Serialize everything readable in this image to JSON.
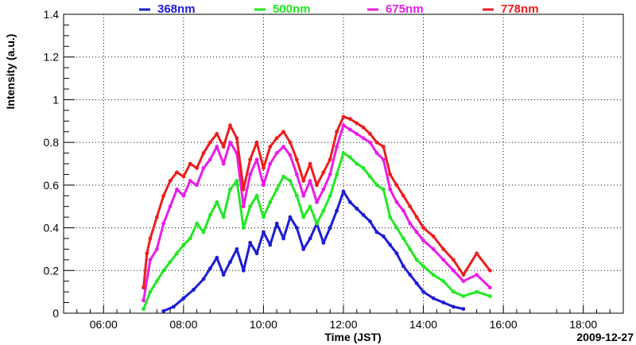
{
  "chart_data": {
    "type": "scatter",
    "xlabel": "Time (JST)",
    "ylabel": "Intensity (a.u.)",
    "date_label": "2009-12-27",
    "xlim": [
      "05:00",
      "19:00"
    ],
    "ylim": [
      0,
      1.4
    ],
    "x_ticks": [
      "06:00",
      "08:00",
      "10:00",
      "12:00",
      "14:00",
      "16:00",
      "18:00"
    ],
    "y_ticks": [
      "0",
      "0.2",
      "0.4",
      "0.6",
      "0.8",
      "1",
      "1.2",
      "1.4"
    ],
    "grid": true,
    "legend_position": "top",
    "series": [
      {
        "name": "368nm",
        "color": "#1c1cd6",
        "points": [
          [
            "07:30",
            0.01
          ],
          [
            "07:45",
            0.03
          ],
          [
            "08:00",
            0.07
          ],
          [
            "08:15",
            0.11
          ],
          [
            "08:30",
            0.16
          ],
          [
            "08:40",
            0.21
          ],
          [
            "08:50",
            0.26
          ],
          [
            "09:00",
            0.18
          ],
          [
            "09:10",
            0.24
          ],
          [
            "09:20",
            0.3
          ],
          [
            "09:30",
            0.2
          ],
          [
            "09:40",
            0.33
          ],
          [
            "09:50",
            0.28
          ],
          [
            "10:00",
            0.38
          ],
          [
            "10:10",
            0.32
          ],
          [
            "10:20",
            0.42
          ],
          [
            "10:30",
            0.35
          ],
          [
            "10:40",
            0.45
          ],
          [
            "10:50",
            0.4
          ],
          [
            "11:00",
            0.3
          ],
          [
            "11:10",
            0.35
          ],
          [
            "11:20",
            0.42
          ],
          [
            "11:30",
            0.33
          ],
          [
            "11:40",
            0.4
          ],
          [
            "11:50",
            0.48
          ],
          [
            "12:00",
            0.57
          ],
          [
            "12:10",
            0.52
          ],
          [
            "12:20",
            0.49
          ],
          [
            "12:30",
            0.46
          ],
          [
            "12:40",
            0.43
          ],
          [
            "12:50",
            0.38
          ],
          [
            "13:00",
            0.36
          ],
          [
            "13:10",
            0.32
          ],
          [
            "13:20",
            0.28
          ],
          [
            "13:30",
            0.22
          ],
          [
            "13:40",
            0.18
          ],
          [
            "13:50",
            0.14
          ],
          [
            "14:00",
            0.1
          ],
          [
            "14:15",
            0.07
          ],
          [
            "14:30",
            0.05
          ],
          [
            "14:45",
            0.03
          ],
          [
            "15:00",
            0.02
          ]
        ]
      },
      {
        "name": "500nm",
        "color": "#22e822",
        "points": [
          [
            "07:00",
            0.02
          ],
          [
            "07:10",
            0.1
          ],
          [
            "07:20",
            0.15
          ],
          [
            "07:30",
            0.2
          ],
          [
            "07:40",
            0.24
          ],
          [
            "07:50",
            0.28
          ],
          [
            "08:00",
            0.32
          ],
          [
            "08:10",
            0.35
          ],
          [
            "08:20",
            0.42
          ],
          [
            "08:30",
            0.38
          ],
          [
            "08:40",
            0.46
          ],
          [
            "08:50",
            0.52
          ],
          [
            "09:00",
            0.45
          ],
          [
            "09:10",
            0.58
          ],
          [
            "09:20",
            0.62
          ],
          [
            "09:30",
            0.4
          ],
          [
            "09:40",
            0.5
          ],
          [
            "09:50",
            0.55
          ],
          [
            "10:00",
            0.45
          ],
          [
            "10:10",
            0.52
          ],
          [
            "10:20",
            0.58
          ],
          [
            "10:30",
            0.64
          ],
          [
            "10:40",
            0.62
          ],
          [
            "10:50",
            0.55
          ],
          [
            "11:00",
            0.45
          ],
          [
            "11:10",
            0.5
          ],
          [
            "11:20",
            0.42
          ],
          [
            "11:30",
            0.48
          ],
          [
            "11:40",
            0.55
          ],
          [
            "11:50",
            0.65
          ],
          [
            "12:00",
            0.75
          ],
          [
            "12:10",
            0.73
          ],
          [
            "12:20",
            0.7
          ],
          [
            "12:30",
            0.68
          ],
          [
            "12:40",
            0.64
          ],
          [
            "12:50",
            0.6
          ],
          [
            "13:00",
            0.58
          ],
          [
            "13:10",
            0.45
          ],
          [
            "13:20",
            0.4
          ],
          [
            "13:30",
            0.35
          ],
          [
            "13:40",
            0.3
          ],
          [
            "13:50",
            0.25
          ],
          [
            "14:00",
            0.22
          ],
          [
            "14:15",
            0.18
          ],
          [
            "14:30",
            0.15
          ],
          [
            "14:45",
            0.1
          ],
          [
            "15:00",
            0.08
          ],
          [
            "15:20",
            0.1
          ],
          [
            "15:40",
            0.08
          ]
        ]
      },
      {
        "name": "675nm",
        "color": "#ea1cea",
        "points": [
          [
            "07:00",
            0.06
          ],
          [
            "07:10",
            0.25
          ],
          [
            "07:20",
            0.3
          ],
          [
            "07:30",
            0.42
          ],
          [
            "07:40",
            0.5
          ],
          [
            "07:50",
            0.58
          ],
          [
            "08:00",
            0.55
          ],
          [
            "08:10",
            0.62
          ],
          [
            "08:20",
            0.6
          ],
          [
            "08:30",
            0.68
          ],
          [
            "08:40",
            0.72
          ],
          [
            "08:50",
            0.78
          ],
          [
            "09:00",
            0.7
          ],
          [
            "09:10",
            0.8
          ],
          [
            "09:20",
            0.75
          ],
          [
            "09:30",
            0.5
          ],
          [
            "09:40",
            0.65
          ],
          [
            "09:50",
            0.72
          ],
          [
            "10:00",
            0.6
          ],
          [
            "10:10",
            0.7
          ],
          [
            "10:20",
            0.75
          ],
          [
            "10:30",
            0.78
          ],
          [
            "10:40",
            0.74
          ],
          [
            "10:50",
            0.65
          ],
          [
            "11:00",
            0.55
          ],
          [
            "11:10",
            0.62
          ],
          [
            "11:20",
            0.52
          ],
          [
            "11:30",
            0.58
          ],
          [
            "11:40",
            0.65
          ],
          [
            "11:50",
            0.78
          ],
          [
            "12:00",
            0.88
          ],
          [
            "12:10",
            0.86
          ],
          [
            "12:20",
            0.84
          ],
          [
            "12:30",
            0.82
          ],
          [
            "12:40",
            0.8
          ],
          [
            "12:50",
            0.75
          ],
          [
            "13:00",
            0.72
          ],
          [
            "13:10",
            0.58
          ],
          [
            "13:20",
            0.52
          ],
          [
            "13:30",
            0.48
          ],
          [
            "13:40",
            0.42
          ],
          [
            "13:50",
            0.38
          ],
          [
            "14:00",
            0.34
          ],
          [
            "14:15",
            0.3
          ],
          [
            "14:30",
            0.25
          ],
          [
            "14:45",
            0.2
          ],
          [
            "15:00",
            0.15
          ],
          [
            "15:20",
            0.18
          ],
          [
            "15:40",
            0.12
          ]
        ]
      },
      {
        "name": "778nm",
        "color": "#ee1c1c",
        "points": [
          [
            "07:00",
            0.12
          ],
          [
            "07:05",
            0.28
          ],
          [
            "07:10",
            0.35
          ],
          [
            "07:20",
            0.45
          ],
          [
            "07:30",
            0.55
          ],
          [
            "07:40",
            0.62
          ],
          [
            "07:50",
            0.66
          ],
          [
            "08:00",
            0.64
          ],
          [
            "08:10",
            0.7
          ],
          [
            "08:20",
            0.68
          ],
          [
            "08:30",
            0.75
          ],
          [
            "08:40",
            0.8
          ],
          [
            "08:50",
            0.84
          ],
          [
            "09:00",
            0.78
          ],
          [
            "09:10",
            0.88
          ],
          [
            "09:20",
            0.82
          ],
          [
            "09:30",
            0.58
          ],
          [
            "09:40",
            0.72
          ],
          [
            "09:50",
            0.8
          ],
          [
            "10:00",
            0.68
          ],
          [
            "10:10",
            0.78
          ],
          [
            "10:20",
            0.82
          ],
          [
            "10:30",
            0.85
          ],
          [
            "10:40",
            0.8
          ],
          [
            "10:50",
            0.72
          ],
          [
            "11:00",
            0.62
          ],
          [
            "11:10",
            0.7
          ],
          [
            "11:20",
            0.6
          ],
          [
            "11:30",
            0.66
          ],
          [
            "11:40",
            0.72
          ],
          [
            "11:50",
            0.85
          ],
          [
            "12:00",
            0.92
          ],
          [
            "12:10",
            0.91
          ],
          [
            "12:20",
            0.89
          ],
          [
            "12:30",
            0.87
          ],
          [
            "12:40",
            0.84
          ],
          [
            "12:50",
            0.8
          ],
          [
            "13:00",
            0.78
          ],
          [
            "13:10",
            0.65
          ],
          [
            "13:20",
            0.6
          ],
          [
            "13:30",
            0.55
          ],
          [
            "13:40",
            0.5
          ],
          [
            "13:50",
            0.45
          ],
          [
            "14:00",
            0.4
          ],
          [
            "14:15",
            0.36
          ],
          [
            "14:30",
            0.3
          ],
          [
            "14:45",
            0.25
          ],
          [
            "15:00",
            0.18
          ],
          [
            "15:20",
            0.28
          ],
          [
            "15:40",
            0.2
          ]
        ]
      }
    ]
  }
}
